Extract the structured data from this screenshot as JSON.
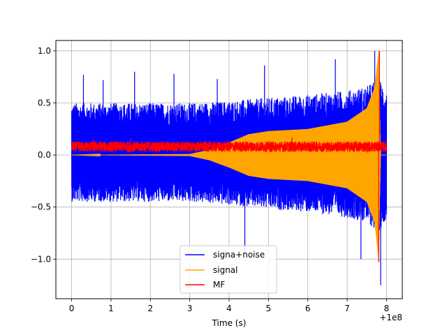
{
  "chart_data": {
    "type": "line",
    "title": "",
    "xlabel": "Time (s)",
    "ylabel": "",
    "x_offset_label": "+1e8",
    "xlim": [
      -0.4,
      8.4
    ],
    "ylim": [
      -1.38,
      1.1
    ],
    "xticks": [
      0,
      1,
      2,
      3,
      4,
      5,
      6,
      7,
      8
    ],
    "yticks": [
      -1.0,
      -0.5,
      0.0,
      0.5,
      1.0
    ],
    "xtick_labels": [
      "0",
      "1",
      "2",
      "3",
      "4",
      "5",
      "6",
      "7",
      "8"
    ],
    "ytick_labels": [
      "−1.0",
      "−0.5",
      "0.0",
      "0.5",
      "1.0"
    ],
    "grid": true,
    "legend_position": "lower-center",
    "series": [
      {
        "name": "signa+noise",
        "color": "#0000ff",
        "style": "dense noise oscillation",
        "x_range": [
          0,
          8
        ],
        "upper_envelope": [
          [
            0,
            0.5
          ],
          [
            2,
            0.5
          ],
          [
            3,
            0.5
          ],
          [
            4,
            0.52
          ],
          [
            5,
            0.55
          ],
          [
            6,
            0.58
          ],
          [
            7,
            0.62
          ],
          [
            7.5,
            0.66
          ],
          [
            7.8,
            0.75
          ],
          [
            8,
            0.62
          ]
        ],
        "lower_envelope": [
          [
            0,
            -0.45
          ],
          [
            2,
            -0.45
          ],
          [
            3,
            -0.45
          ],
          [
            4,
            -0.48
          ],
          [
            5,
            -0.52
          ],
          [
            6,
            -0.55
          ],
          [
            7,
            -0.6
          ],
          [
            7.5,
            -0.65
          ],
          [
            7.8,
            -0.75
          ],
          [
            8,
            -0.6
          ]
        ],
        "peak_values": [
          0.77,
          0.72,
          0.8,
          0.78,
          0.73,
          0.86,
          0.92,
          1.0,
          -0.95,
          -1.0,
          -1.25
        ],
        "peak_x": [
          0.3,
          0.8,
          1.6,
          2.6,
          3.7,
          4.9,
          6.7,
          7.7,
          4.4,
          7.35,
          7.85
        ]
      },
      {
        "name": "signal",
        "color": "#ffa500",
        "style": "chirp with growing amplitude",
        "x_range": [
          0,
          8
        ],
        "amplitude_envelope": [
          [
            0,
            0.0
          ],
          [
            3,
            0.01
          ],
          [
            3.5,
            0.05
          ],
          [
            4,
            0.12
          ],
          [
            4.5,
            0.2
          ],
          [
            5,
            0.23
          ],
          [
            6,
            0.25
          ],
          [
            7,
            0.32
          ],
          [
            7.5,
            0.45
          ],
          [
            7.7,
            0.65
          ],
          [
            7.8,
            1.0
          ],
          [
            7.85,
            0.0
          ]
        ]
      },
      {
        "name": "MF",
        "color": "#ff0000",
        "style": "matched filter output",
        "x_range": [
          0,
          8
        ],
        "baseline_band": [
          0.03,
          0.13
        ],
        "spikes": [
          [
            0.55,
            0.16
          ],
          [
            1.5,
            0.16
          ],
          [
            5.6,
            0.17
          ],
          [
            7.82,
            1.0
          ],
          [
            7.8,
            -1.03
          ]
        ]
      }
    ]
  }
}
